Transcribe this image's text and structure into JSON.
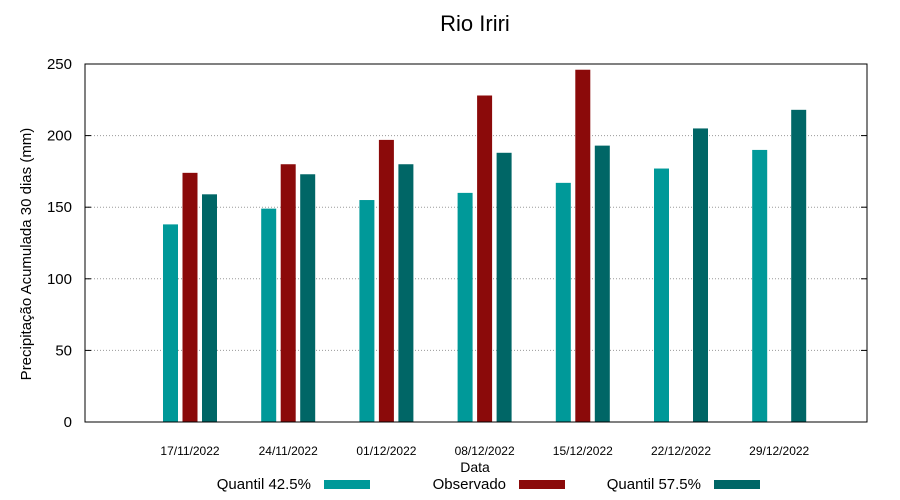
{
  "chart_data": {
    "type": "bar",
    "title": "Rio Iriri",
    "xlabel": "Data",
    "ylabel": "Precipitação Acumulada 30 dias (mm)",
    "ylim": [
      0,
      250
    ],
    "yticks": [
      0,
      50,
      100,
      150,
      200,
      250
    ],
    "grid": true,
    "legend_position": "bottom",
    "categories": [
      "17/11/2022",
      "24/11/2022",
      "01/12/2022",
      "08/12/2022",
      "15/12/2022",
      "22/12/2022",
      "29/12/2022"
    ],
    "series": [
      {
        "name": "Quantil 42.5%",
        "color": "#009999",
        "values": [
          138,
          149,
          155,
          160,
          167,
          177,
          190
        ]
      },
      {
        "name": "Observado",
        "color": "#8b0a0a",
        "values": [
          174,
          180,
          197,
          228,
          246,
          null,
          null
        ]
      },
      {
        "name": "Quantil 57.5%",
        "color": "#006666",
        "values": [
          159,
          173,
          180,
          188,
          193,
          205,
          218
        ]
      }
    ]
  }
}
